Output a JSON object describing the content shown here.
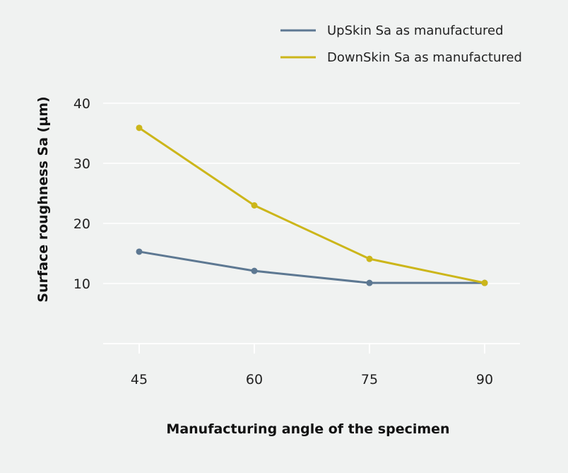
{
  "chart_data": {
    "type": "line",
    "title": "",
    "xlabel": "Manufacturing angle of the specimen",
    "ylabel": "Surface roughness Sa (µm)",
    "categories": [
      "45",
      "60",
      "75",
      "90"
    ],
    "x": [
      45,
      60,
      75,
      90
    ],
    "yticks": [
      10,
      20,
      30,
      40
    ],
    "ylim": [
      0,
      40
    ],
    "grid": true,
    "legend_position": "top-right",
    "series": [
      {
        "name": "UpSkin Sa as manufactured",
        "color": "#5d7892",
        "values": [
          15.3,
          12.1,
          10.1,
          10.1
        ]
      },
      {
        "name": "DownSkin Sa as manufactured",
        "color": "#ccb61a",
        "values": [
          35.9,
          23.0,
          14.1,
          10.1
        ]
      }
    ]
  }
}
